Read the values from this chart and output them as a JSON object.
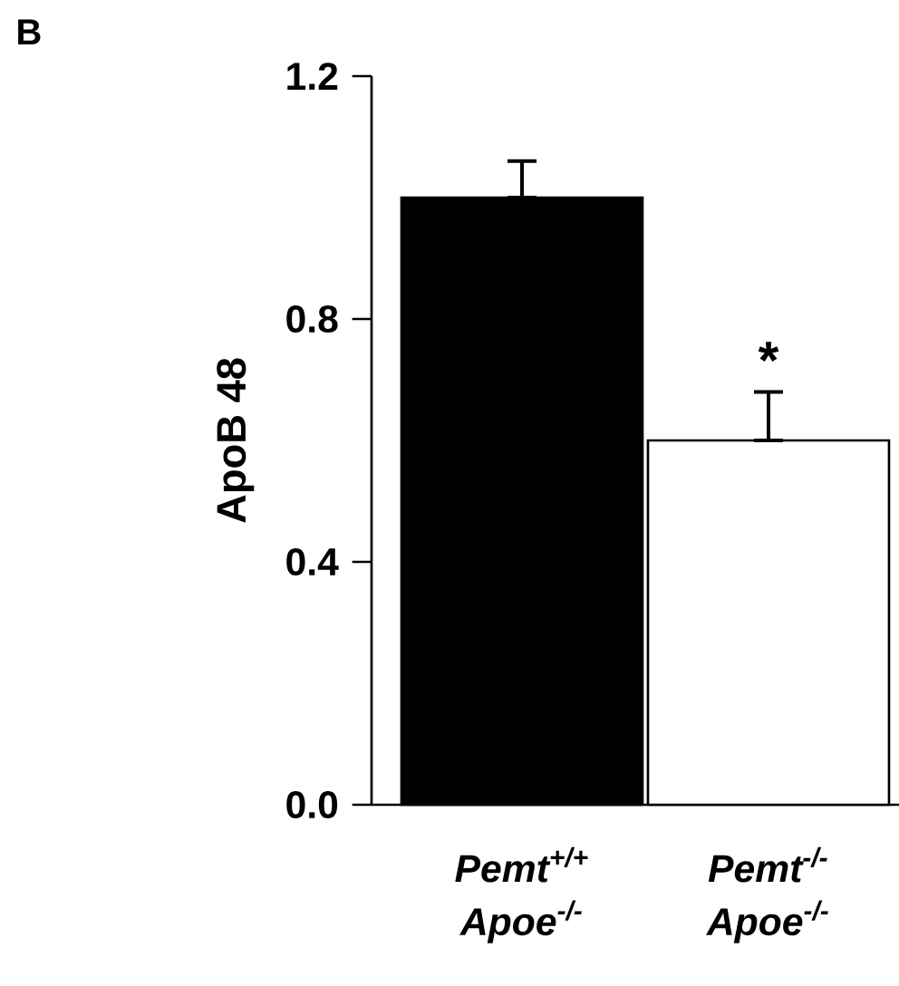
{
  "chart_data": {
    "type": "bar",
    "title": "B",
    "ylabel": "ApoB 48",
    "categories": [
      "Pemt$^{+/+}$ Apoe$^{-/-}$",
      "Pemt$^{-/-}$ Apoe$^{-/-}$"
    ],
    "values": [
      1.0,
      0.6
    ],
    "colors": [
      "#000000",
      "#ffffff"
    ],
    "errors": [
      [
        1.0,
        1.06
      ],
      [
        0.6,
        0.68
      ]
    ],
    "ylim": [
      0,
      1.2
    ],
    "yticks": [
      {
        "value": 0,
        "label": "0.0"
      },
      0.4,
      0.8,
      1.2
    ],
    "annotations": [
      {
        "text": "*",
        "x": "Pemt$^{-/-}$ Apoe$^{-/-}$",
        "y": 0.68
      }
    ]
  }
}
